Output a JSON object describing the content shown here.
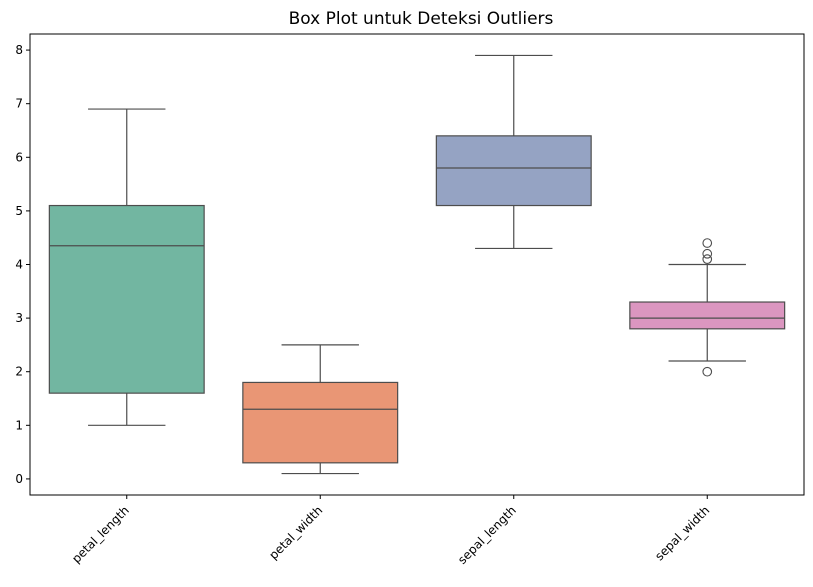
{
  "chart_data": {
    "type": "box",
    "title": "Box Plot untuk Deteksi Outliers",
    "xlabel": "",
    "ylabel": "",
    "ylim": [
      -0.3,
      8.3
    ],
    "yticks": [
      0,
      1,
      2,
      3,
      4,
      5,
      6,
      7,
      8
    ],
    "grid": false,
    "categories": [
      "petal_length",
      "petal_width",
      "sepal_length",
      "sepal_width"
    ],
    "boxes": [
      {
        "category": "petal_length",
        "whisker_low": 1.0,
        "q1": 1.6,
        "median": 4.35,
        "q3": 5.1,
        "whisker_high": 6.9,
        "outliers": [],
        "color": "#72b6a1"
      },
      {
        "category": "petal_width",
        "whisker_low": 0.1,
        "q1": 0.3,
        "median": 1.3,
        "q3": 1.8,
        "whisker_high": 2.5,
        "outliers": [],
        "color": "#e99675"
      },
      {
        "category": "sepal_length",
        "whisker_low": 4.3,
        "q1": 5.1,
        "median": 5.8,
        "q3": 6.4,
        "whisker_high": 7.9,
        "outliers": [],
        "color": "#95a3c3"
      },
      {
        "category": "sepal_width",
        "whisker_low": 2.2,
        "q1": 2.8,
        "median": 3.0,
        "q3": 3.3,
        "whisker_high": 4.0,
        "outliers": [
          2.0,
          4.1,
          4.2,
          4.4
        ],
        "color": "#db96c0"
      }
    ]
  }
}
